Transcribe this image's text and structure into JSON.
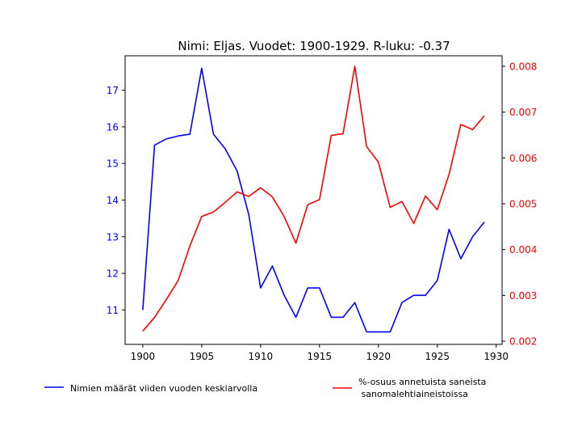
{
  "chart_data": {
    "type": "line",
    "title": "Nimi: Eljas. Vuodet: 1900-1929. R-luku: -0.37",
    "xlabel": "",
    "ylabel_left": "",
    "ylabel_right": "",
    "x": [
      1900,
      1901,
      1902,
      1903,
      1904,
      1905,
      1906,
      1907,
      1908,
      1909,
      1910,
      1911,
      1912,
      1913,
      1914,
      1915,
      1916,
      1917,
      1918,
      1919,
      1920,
      1921,
      1922,
      1923,
      1924,
      1925,
      1926,
      1927,
      1928,
      1929
    ],
    "xlim": [
      1898.5,
      1930.5
    ],
    "x_ticks": [
      1900,
      1905,
      1910,
      1915,
      1920,
      1925,
      1930
    ],
    "ylim_left": [
      10.06,
      17.94
    ],
    "y_ticks_left": [
      11,
      12,
      13,
      14,
      15,
      16,
      17
    ],
    "ylim_right": [
      0.00193,
      0.00823
    ],
    "y_ticks_right": [
      "0.002",
      "0.003",
      "0.004",
      "0.005",
      "0.006",
      "0.007",
      "0.008"
    ],
    "grid": false,
    "series": [
      {
        "name": "Nimien määrät viiden vuoden keskiarvolla",
        "axis": "left",
        "color": "#0000ff",
        "values": [
          11.0,
          15.5,
          15.67,
          15.75,
          15.8,
          17.6,
          15.8,
          15.4,
          14.8,
          13.6,
          11.6,
          12.2,
          11.4,
          10.8,
          11.6,
          11.6,
          10.8,
          10.8,
          11.2,
          10.4,
          10.4,
          10.4,
          11.2,
          11.4,
          11.4,
          11.8,
          13.2,
          12.4,
          13.0,
          13.4
        ]
      },
      {
        "name": "%-osuus annetuista saneista\n sanomalehtiaineistoissa",
        "axis": "right",
        "color": "#ff0000",
        "values": [
          0.00222,
          0.00252,
          0.00291,
          0.00332,
          0.00408,
          0.00472,
          0.00482,
          0.00503,
          0.00526,
          0.00516,
          0.00535,
          0.00515,
          0.00472,
          0.00414,
          0.00498,
          0.00509,
          0.00649,
          0.00653,
          0.008,
          0.00625,
          0.00591,
          0.00492,
          0.00505,
          0.00457,
          0.00517,
          0.00487,
          0.00564,
          0.00673,
          0.00662,
          0.00692
        ]
      }
    ],
    "legend_placement": "bottom"
  }
}
